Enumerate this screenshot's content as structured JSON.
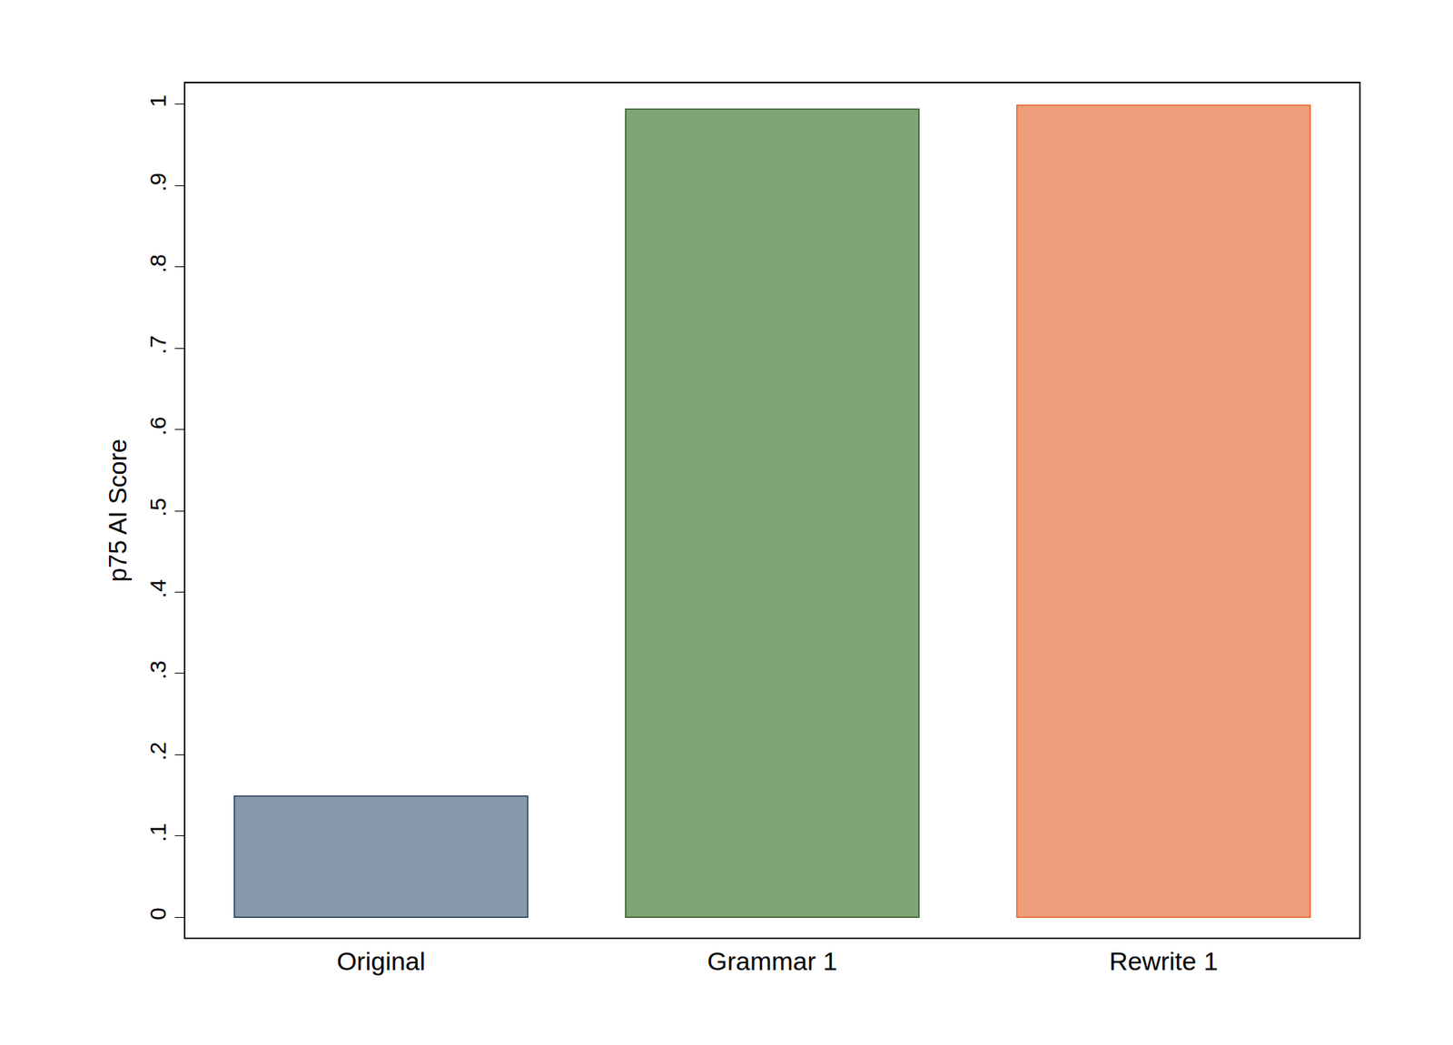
{
  "chart_data": {
    "type": "bar",
    "categories": [
      "Original",
      "Grammar 1",
      "Rewrite 1"
    ],
    "values": [
      0.149,
      0.994,
      0.999
    ],
    "colors": [
      "#8799aa",
      "#7fa476",
      "#ee9e7a"
    ],
    "ylabel": "p75 AI Score",
    "ylim": [
      -0.025,
      1.026
    ],
    "yticks": [
      0,
      {
        "value": 0.1,
        "label": ".1"
      },
      {
        "value": 0.2,
        "label": ".2"
      },
      {
        "value": 0.3,
        "label": ".3"
      },
      {
        "value": 0.4,
        "label": ".4"
      },
      {
        "value": 0.5,
        "label": ".5"
      },
      {
        "value": 0.6,
        "label": ".6"
      },
      {
        "value": 0.7,
        "label": ".7"
      },
      {
        "value": 0.8,
        "label": ".8"
      },
      {
        "value": 0.9,
        "label": ".9"
      },
      1
    ],
    "grid": false
  }
}
